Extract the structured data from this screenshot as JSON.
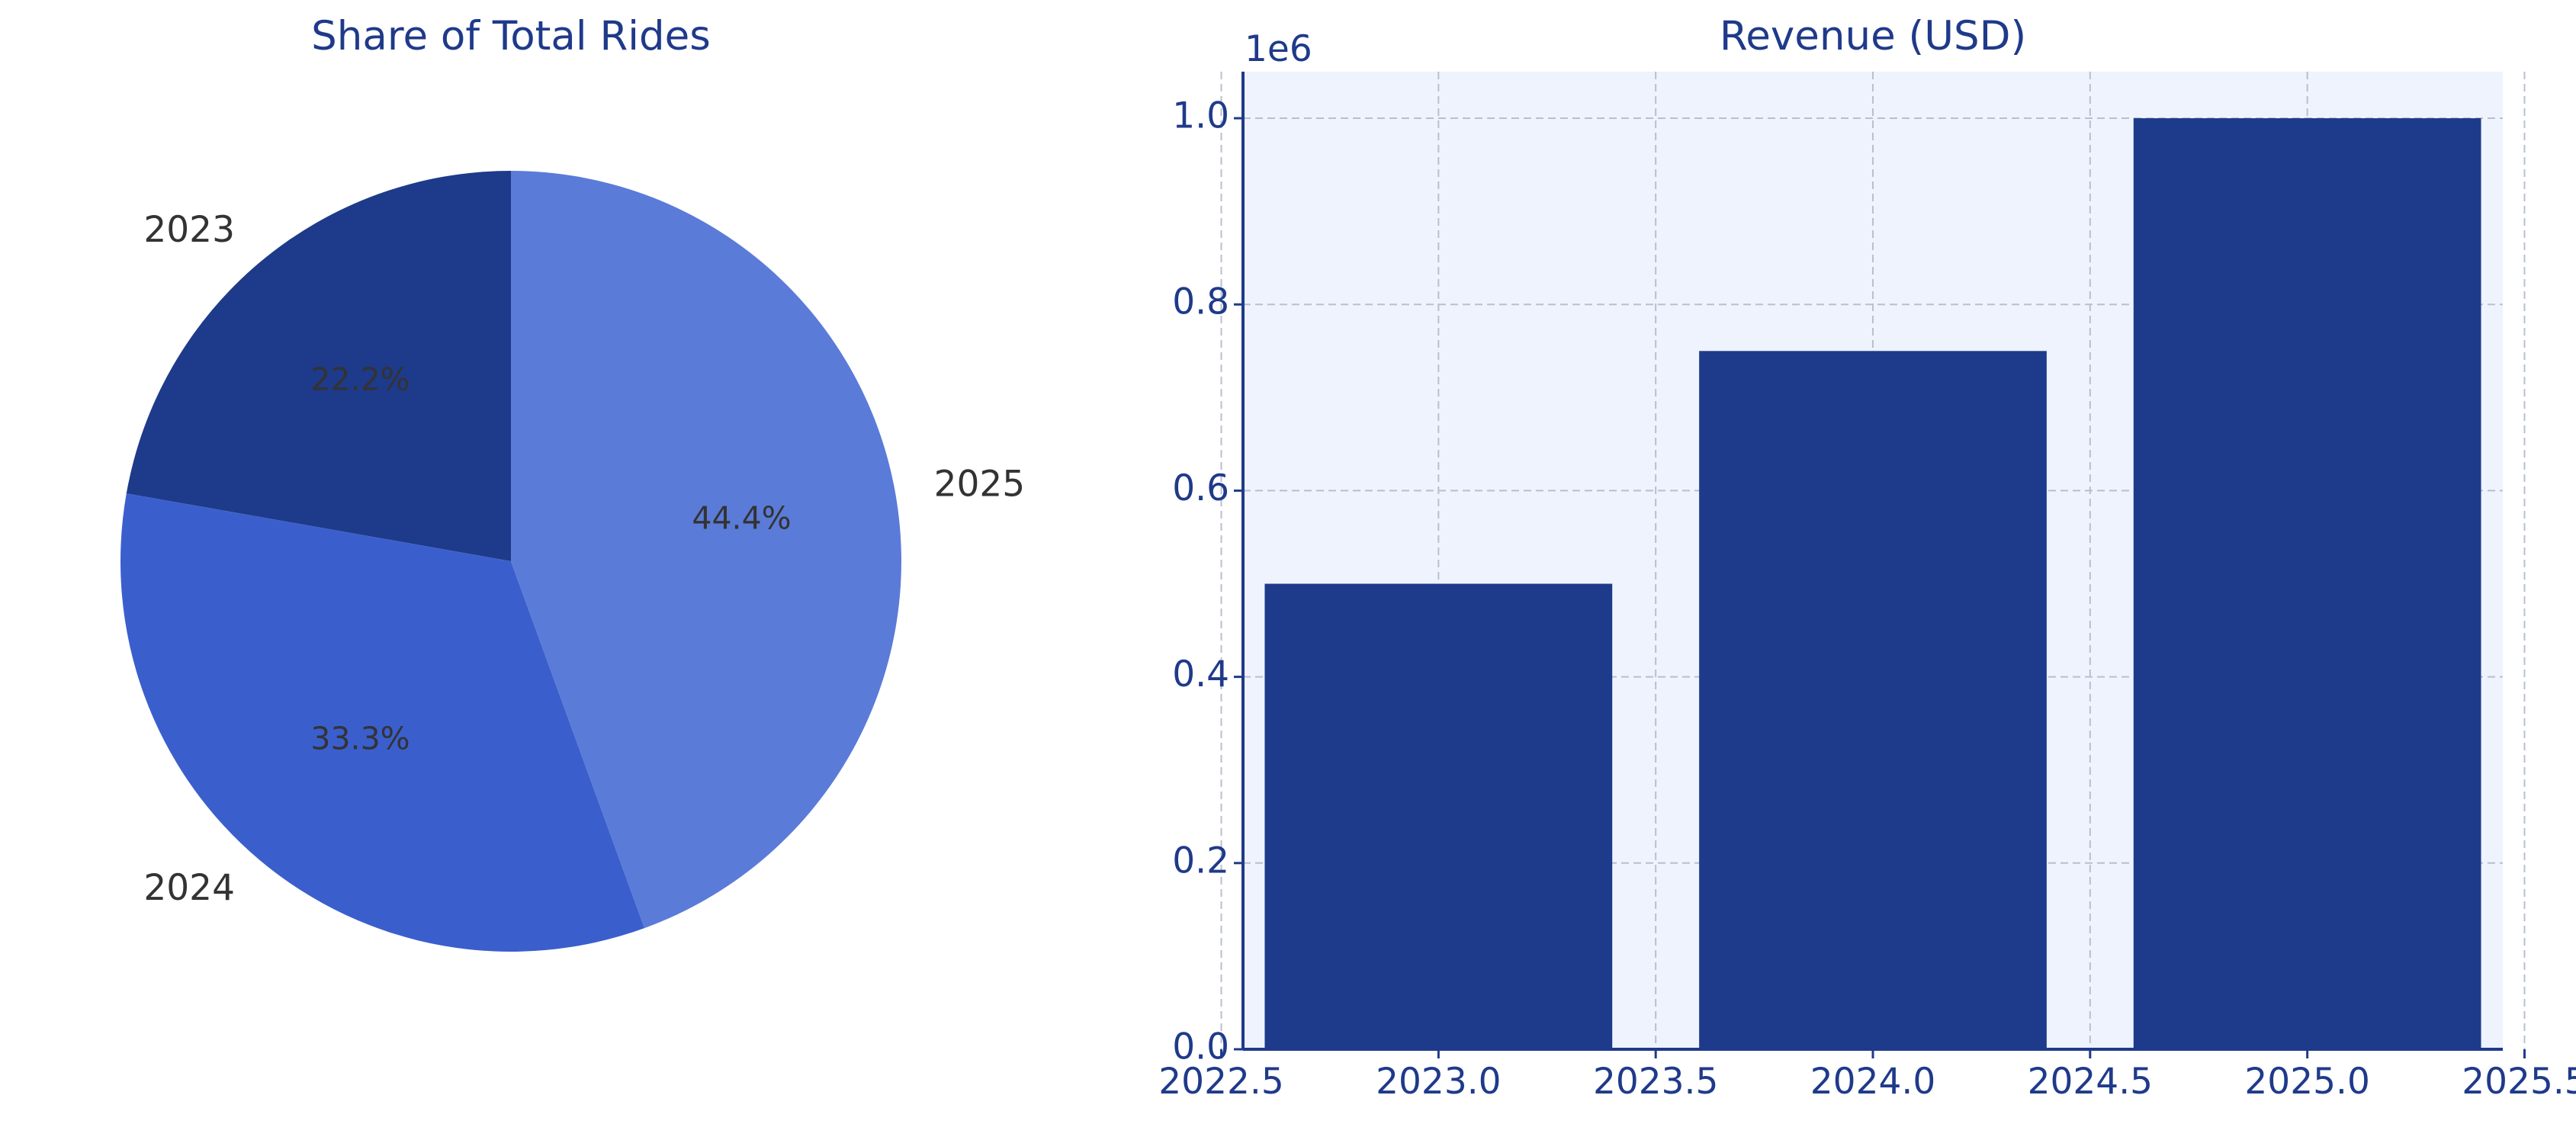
{
  "colors": {
    "title": "#1f3a8a",
    "axis": "#1f3a8a",
    "tick_text": "#1f3a8a",
    "label_text": "#333333",
    "plot_bg": "#eef3fd",
    "grid": "#b8bfcf",
    "bar": "#1e3a8a",
    "slice_2023": "#1e3a8a",
    "slice_2024": "#3a5fcd",
    "slice_2025": "#5b7bd9"
  },
  "chart_data": [
    {
      "type": "pie",
      "title": "Share of Total Rides",
      "slices": [
        {
          "label": "2023",
          "value": 22.2,
          "pct_label": "22.2%",
          "color": "#1e3a8a"
        },
        {
          "label": "2024",
          "value": 33.3,
          "pct_label": "33.3%",
          "color": "#3a5fcd"
        },
        {
          "label": "2025",
          "value": 44.4,
          "pct_label": "44.4%",
          "color": "#5b7bd9"
        }
      ],
      "start_angle_deg": 90,
      "direction": "counterclockwise"
    },
    {
      "type": "bar",
      "title": "Revenue (USD)",
      "x": [
        2023,
        2024,
        2025
      ],
      "values": [
        500000,
        750000,
        1000000
      ],
      "bar_width": 0.8,
      "xlim": [
        2022.55,
        2025.45
      ],
      "ylim": [
        0,
        1050000
      ],
      "xticks": [
        "2022.5",
        "2023.0",
        "2023.5",
        "2024.0",
        "2024.5",
        "2025.0",
        "2025.5"
      ],
      "yticks": [
        "0.0",
        "0.2",
        "0.4",
        "0.6",
        "0.8",
        "1.0"
      ],
      "ytick_scale": 1000000,
      "offset_label": "1e6",
      "grid": true
    }
  ]
}
